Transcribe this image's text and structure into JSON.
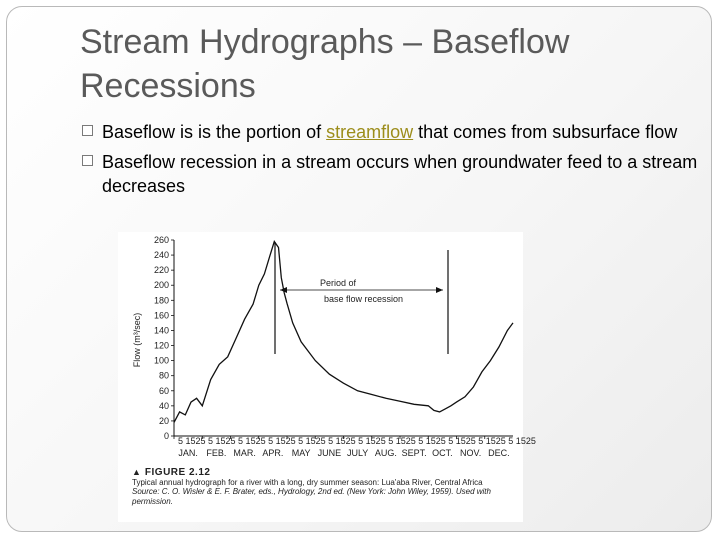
{
  "slide": {
    "title": "Stream Hydrographs – Baseflow Recessions",
    "bullets": [
      {
        "before": "Baseflow is is the portion of ",
        "link": "streamflow",
        "after": " that comes from subsurface flow"
      },
      {
        "before": "Baseflow recession in a stream occurs when groundwater feed to a stream decreases",
        "link": "",
        "after": ""
      }
    ]
  },
  "figure": {
    "ylabel": "Flow (m³/sec)",
    "annotation_line1": "Period of",
    "annotation_line2": "base flow   recession",
    "caption_marker": "▲",
    "caption_label": "FIGURE 2.12",
    "caption_line1": "Typical annual hydrograph for a river with a long, dry summer season: Lua'aba River, Central Africa",
    "caption_line2": "Source: C. O. Wisler & E. F. Brater, eds., Hydrology, 2nd ed. (New York: John Wiley, 1959). Used with",
    "caption_line3": "permission.",
    "day_tick_row": "5 1525 5 1525 5 1525 5 1525 5 1525 5 1525 5 1525 5 1525 5 1525 5 1525 5 1525 5 1525"
  },
  "chart_data": {
    "type": "line",
    "xlabel": "",
    "ylabel": "Flow (m³/sec)",
    "ylim": [
      0,
      260
    ],
    "y_ticks": [
      0,
      20,
      40,
      60,
      80,
      100,
      120,
      140,
      160,
      180,
      200,
      220,
      240,
      260
    ],
    "x_months": [
      "JAN.",
      "FEB.",
      "MAR.",
      "APR.",
      "MAY",
      "JUNE",
      "JULY",
      "AUG.",
      "SEPT.",
      "OCT.",
      "NOV.",
      "DEC."
    ],
    "series": [
      {
        "x": [
          0,
          0.2,
          0.4,
          0.6,
          0.8,
          1.0,
          1.3,
          1.6,
          1.9,
          2.2,
          2.5,
          2.8,
          3.0,
          3.2,
          3.4,
          3.55,
          3.7,
          3.8,
          3.9,
          4.0,
          4.2,
          4.5,
          5.0,
          5.5,
          6.0,
          6.5,
          7.0,
          7.5,
          8.0,
          8.5,
          9.0,
          9.2,
          9.4,
          9.6,
          9.8,
          10.0,
          10.3,
          10.6,
          10.9,
          11.2,
          11.5,
          11.8,
          12.0
        ],
        "y": [
          18,
          32,
          28,
          45,
          50,
          40,
          75,
          95,
          105,
          130,
          155,
          175,
          200,
          215,
          240,
          258,
          250,
          210,
          190,
          176,
          150,
          125,
          100,
          82,
          70,
          60,
          55,
          50,
          46,
          42,
          40,
          34,
          32,
          36,
          40,
          45,
          52,
          65,
          85,
          100,
          118,
          140,
          150
        ]
      }
    ],
    "annotations": [
      "Period of",
      "base flow   recession"
    ],
    "grid": false,
    "legend": "none"
  }
}
